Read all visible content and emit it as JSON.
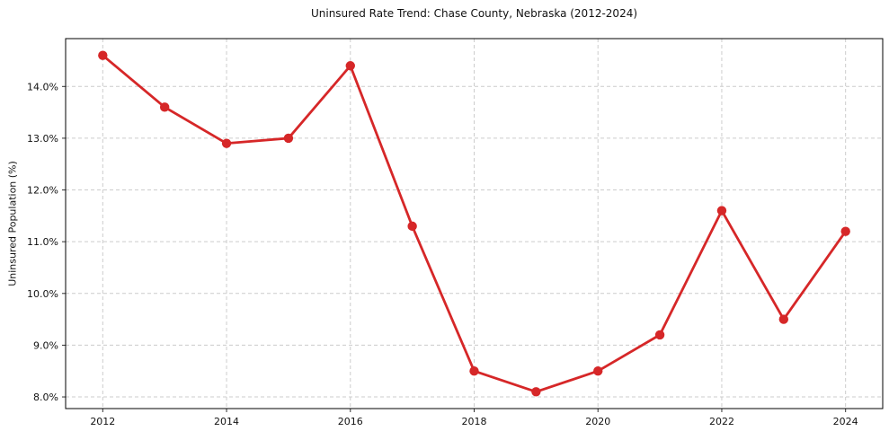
{
  "chart_data": {
    "type": "line",
    "title": "Uninsured Rate Trend: Chase County, Nebraska (2012-2024)",
    "xlabel": "",
    "ylabel": "Uninsured Population (%)",
    "x": [
      2012,
      2013,
      2014,
      2015,
      2016,
      2017,
      2018,
      2019,
      2020,
      2021,
      2022,
      2023,
      2024
    ],
    "values": [
      14.6,
      13.6,
      12.9,
      13.0,
      14.4,
      11.3,
      8.5,
      8.1,
      8.5,
      9.2,
      11.6,
      9.5,
      11.2
    ],
    "xlim": [
      2011.4,
      2024.6
    ],
    "ylim": [
      7.775,
      14.925
    ],
    "xticks": {
      "values": [
        2012,
        2014,
        2016,
        2018,
        2020,
        2022,
        2024
      ],
      "labels": [
        "2012",
        "2014",
        "2016",
        "2018",
        "2020",
        "2022",
        "2024"
      ]
    },
    "yticks": {
      "values": [
        8.0,
        9.0,
        10.0,
        11.0,
        12.0,
        13.0,
        14.0
      ],
      "labels": [
        "8.0%",
        "9.0%",
        "10.0%",
        "11.0%",
        "12.0%",
        "13.0%",
        "14.0%"
      ]
    },
    "grid": true,
    "grid_style": "dashed",
    "legend_position": "none",
    "colors": {
      "line": "#d62728",
      "marker": "#d62728",
      "grid": "#cccccc",
      "axis_border": "#000000",
      "tick": "#333333",
      "background": "#ffffff"
    }
  }
}
